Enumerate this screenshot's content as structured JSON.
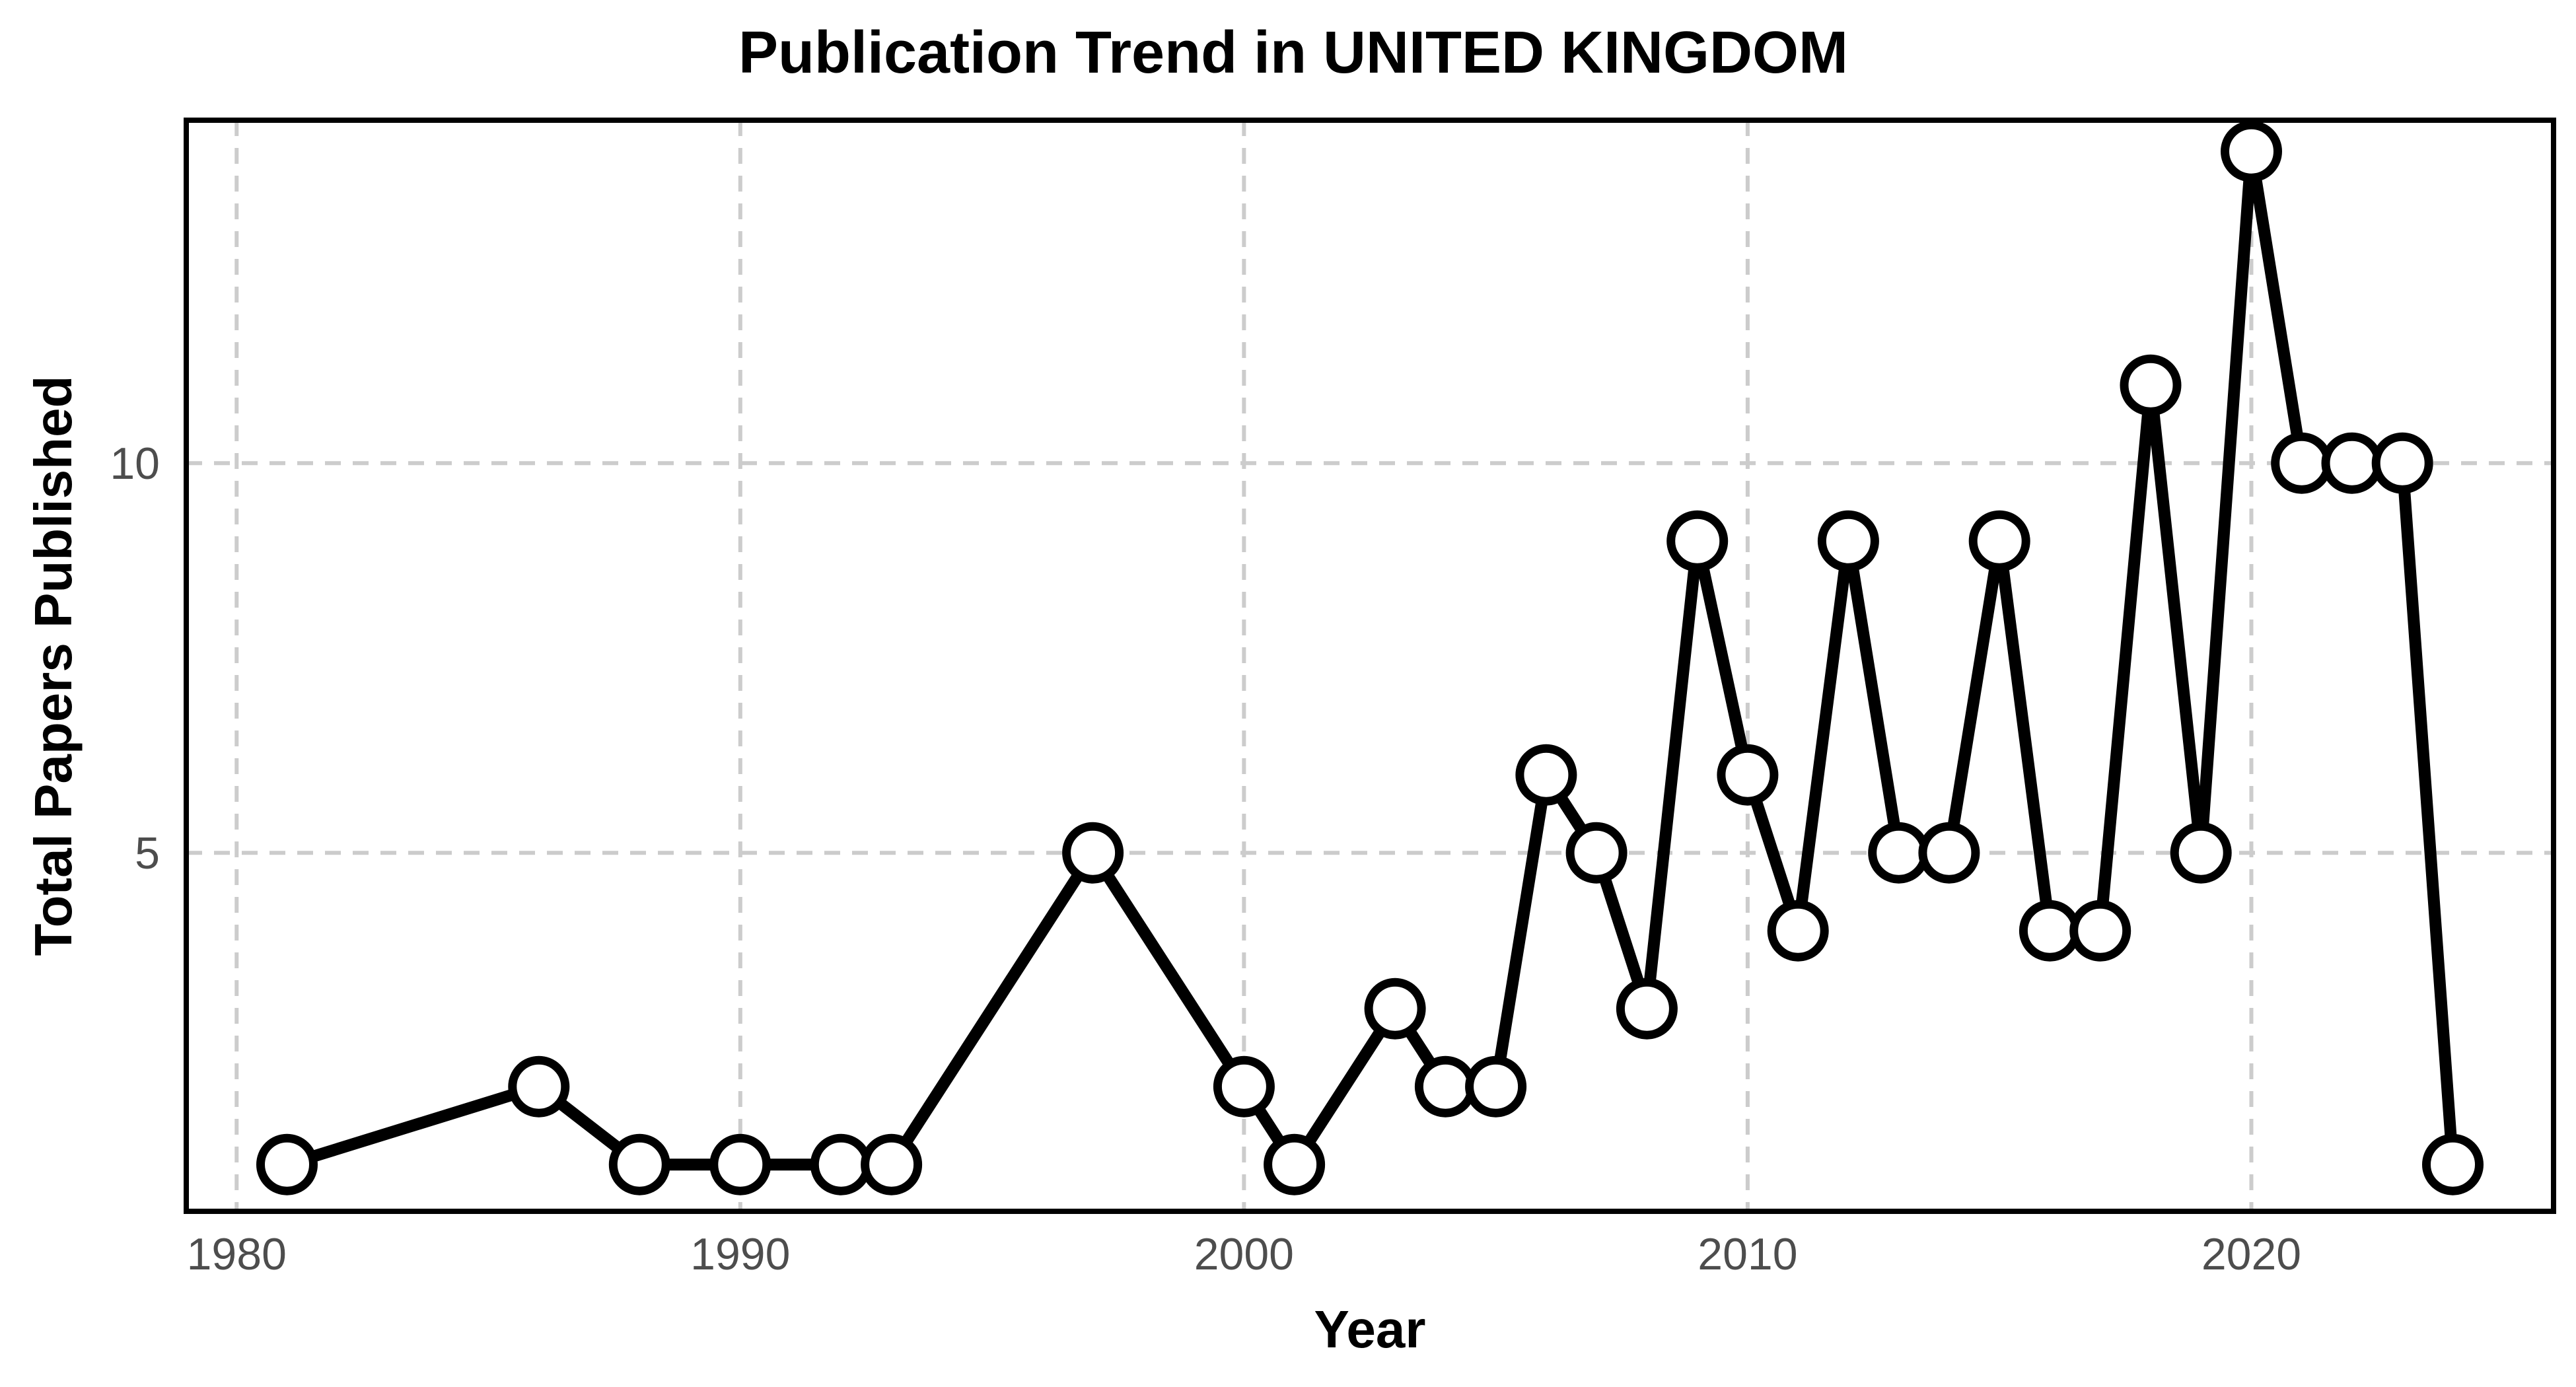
{
  "chart_data": {
    "type": "line",
    "title": "Publication Trend in UNITED KINGDOM",
    "xlabel": "Year",
    "ylabel": "Total Papers Published",
    "xlim": [
      1979,
      2026
    ],
    "ylim": [
      0.4,
      14.4
    ],
    "x_ticks": [
      1980,
      1990,
      2000,
      2010,
      2020
    ],
    "y_ticks": [
      5,
      10
    ],
    "grid": true,
    "legend": "none",
    "series": [
      {
        "x": [
          1981,
          1986,
          1988,
          1990,
          1992,
          1993,
          1997,
          2000,
          2001,
          2003,
          2004,
          2005,
          2006,
          2007,
          2008,
          2009,
          2010,
          2011,
          2012,
          2013,
          2014,
          2015,
          2016,
          2017,
          2018,
          2019,
          2020,
          2021,
          2022,
          2023,
          2024
        ],
        "values": [
          1,
          2,
          1,
          1,
          1,
          1,
          5,
          2,
          1,
          3,
          2,
          2,
          6,
          5,
          3,
          9,
          6,
          4,
          9,
          5,
          5,
          9,
          4,
          4,
          11,
          5,
          14,
          10,
          10,
          10,
          1
        ]
      }
    ],
    "colors": {
      "line": "#000000",
      "marker_fill": "#ffffff",
      "marker_edge": "#000000",
      "grid": "#cccccc",
      "tick_text": "#4d4d4d"
    }
  }
}
